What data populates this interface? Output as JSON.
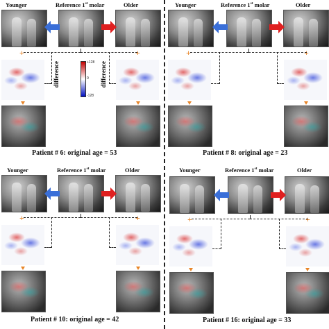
{
  "colors": {
    "younger_arrow": "#3a6fd8",
    "older_arrow": "#e02020",
    "plus_and_down": "#e8862a"
  },
  "colorbar": {
    "max": "+128",
    "mid": "0",
    "min": "-128"
  },
  "diff_label": "difference",
  "panels": [
    {
      "younger": "Younger",
      "reference": "Reference 1",
      "reference_sup": "st",
      "reference_tail": " molar",
      "older": "Older",
      "caption": "Patient # 6: original age = 53"
    },
    {
      "younger": "Younger",
      "reference": "Reference 1",
      "reference_sup": "st",
      "reference_tail": " molar",
      "older": "Older",
      "caption": "Patient # 8: original age = 23"
    },
    {
      "younger": "Younger",
      "reference": "Reference 1",
      "reference_sup": "st",
      "reference_tail": " molar",
      "older": "Older",
      "caption": "Patient # 10: original age = 42"
    },
    {
      "younger": "Younger",
      "reference": "Reference 1",
      "reference_sup": "st",
      "reference_tail": " molar",
      "older": "Older",
      "caption": "Patient # 16: original age = 33"
    }
  ]
}
